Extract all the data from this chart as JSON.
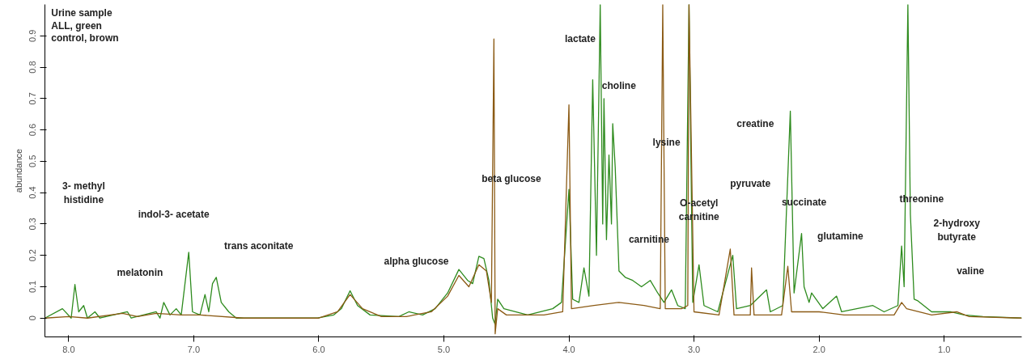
{
  "chart_data": {
    "type": "line",
    "ylabel": "abundance",
    "xlim": [
      8.19,
      0.38
    ],
    "ylim": [
      -0.06,
      1.0
    ],
    "xticks": [
      {
        "value": 8,
        "label": "8.0"
      },
      {
        "value": 7,
        "label": "7.0"
      },
      {
        "value": 6,
        "label": "6.0"
      },
      {
        "value": 5,
        "label": "5.0"
      },
      {
        "value": 4,
        "label": "4.0"
      },
      {
        "value": 3,
        "label": "3.0"
      },
      {
        "value": 2,
        "label": "2.0"
      },
      {
        "value": 1,
        "label": "1.0"
      }
    ],
    "yticks": [
      0,
      0.1,
      0.2,
      0.3,
      0.4,
      0.5,
      0.6,
      0.7,
      0.8,
      0.9
    ],
    "grid": false,
    "line_style": "solid",
    "marker": "none",
    "series": [
      {
        "color": "#2e8b1e",
        "x": [
          8.19,
          8.05,
          7.98,
          7.95,
          7.92,
          7.88,
          7.85,
          7.79,
          7.75,
          7.53,
          7.5,
          7.3,
          7.27,
          7.24,
          7.19,
          7.14,
          7.1,
          7.04,
          7.01,
          6.95,
          6.91,
          6.88,
          6.85,
          6.82,
          6.78,
          6.72,
          6.66,
          6.01,
          5.88,
          5.82,
          5.75,
          5.69,
          5.59,
          5.36,
          5.28,
          5.17,
          5.07,
          4.97,
          4.88,
          4.81,
          4.77,
          4.72,
          4.68,
          4.64,
          4.61,
          4.59,
          4.57,
          4.52,
          4.33,
          4.13,
          4.06,
          4.0,
          3.97,
          3.92,
          3.88,
          3.84,
          3.81,
          3.78,
          3.75,
          3.73,
          3.72,
          3.7,
          3.68,
          3.66,
          3.65,
          3.63,
          3.6,
          3.55,
          3.49,
          3.42,
          3.35,
          3.29,
          3.24,
          3.18,
          3.13,
          3.07,
          3.04,
          3.01,
          2.96,
          2.92,
          2.81,
          2.69,
          2.66,
          2.55,
          2.42,
          2.39,
          2.29,
          2.23,
          2.2,
          2.14,
          2.12,
          2.08,
          2.06,
          1.97,
          1.86,
          1.82,
          1.57,
          1.48,
          1.37,
          1.34,
          1.32,
          1.29,
          1.27,
          1.24,
          1.21,
          1.1,
          0.95,
          0.84,
          0.69,
          0.38
        ],
        "values": [
          0,
          0.03,
          0,
          0.107,
          0.02,
          0.04,
          0,
          0.02,
          0,
          0.02,
          0,
          0.02,
          0,
          0.05,
          0.01,
          0.03,
          0.01,
          0.21,
          0.02,
          0.01,
          0.075,
          0.02,
          0.11,
          0.13,
          0.05,
          0.02,
          0,
          0,
          0.01,
          0.03,
          0.087,
          0.04,
          0.01,
          0.005,
          0.02,
          0.01,
          0.03,
          0.08,
          0.155,
          0.12,
          0.11,
          0.197,
          0.19,
          0.12,
          0,
          -0.02,
          0.06,
          0.03,
          0.01,
          0.03,
          0.05,
          0.41,
          0.06,
          0.05,
          0.16,
          0.07,
          0.76,
          0.2,
          1.0,
          0.3,
          0.7,
          0.25,
          0.52,
          0.3,
          0.62,
          0.48,
          0.15,
          0.13,
          0.12,
          0.1,
          0.12,
          0.08,
          0.05,
          0.09,
          0.04,
          0.03,
          1.0,
          0.05,
          0.17,
          0.04,
          0.02,
          0.2,
          0.03,
          0.04,
          0.09,
          0.02,
          0.04,
          0.66,
          0.08,
          0.27,
          0.1,
          0.05,
          0.08,
          0.03,
          0.07,
          0.02,
          0.04,
          0.02,
          0.04,
          0.23,
          0.1,
          1.0,
          0.33,
          0.06,
          0.055,
          0.02,
          0.02,
          0.01,
          0.005,
          0
        ]
      },
      {
        "color": "#8b5a14",
        "x": [
          8.19,
          8.0,
          7.85,
          7.57,
          7.45,
          7.3,
          7.1,
          6.95,
          6.6,
          6.0,
          5.85,
          5.75,
          5.65,
          5.5,
          5.3,
          5.1,
          4.97,
          4.88,
          4.8,
          4.72,
          4.66,
          4.62,
          4.6,
          4.59,
          4.57,
          4.5,
          4.2,
          4.05,
          4.0,
          3.98,
          3.8,
          3.6,
          3.4,
          3.27,
          3.25,
          3.23,
          3.1,
          3.05,
          3.04,
          3.0,
          2.8,
          2.71,
          2.68,
          2.55,
          2.54,
          2.52,
          2.3,
          2.25,
          2.22,
          2.0,
          1.8,
          1.4,
          1.34,
          1.3,
          1.1,
          0.9,
          0.8,
          0.38
        ],
        "values": [
          0,
          0.005,
          0,
          0.015,
          0.005,
          0.015,
          0.01,
          0.01,
          0,
          0,
          0.02,
          0.075,
          0.03,
          0.005,
          0.005,
          0.02,
          0.07,
          0.136,
          0.1,
          0.17,
          0.15,
          0.05,
          0.89,
          -0.05,
          0.03,
          0.01,
          0.01,
          0.02,
          0.68,
          0.03,
          0.04,
          0.05,
          0.04,
          0.03,
          1.0,
          0.03,
          0.03,
          0.04,
          1.0,
          0.02,
          0.01,
          0.22,
          0.01,
          0.01,
          0.16,
          0.01,
          0.01,
          0.165,
          0.02,
          0.02,
          0.01,
          0.01,
          0.05,
          0.03,
          0.01,
          0.02,
          0.005,
          0
        ]
      }
    ],
    "annotations": [
      "Urine sample",
      "ALL, green",
      "control, brown",
      "3- methyl\nhistidine",
      "melatonin",
      "indol-3- acetate",
      "trans aconitate",
      "alpha glucose",
      "beta glucose",
      "lactate",
      "choline",
      "lysine",
      "creatine",
      "carnitine",
      "O-acetyl\ncarnitine",
      "pyruvate",
      "succinate",
      "glutamine",
      "threonine",
      "2-hydroxy\nbutyrate",
      "valine"
    ]
  }
}
